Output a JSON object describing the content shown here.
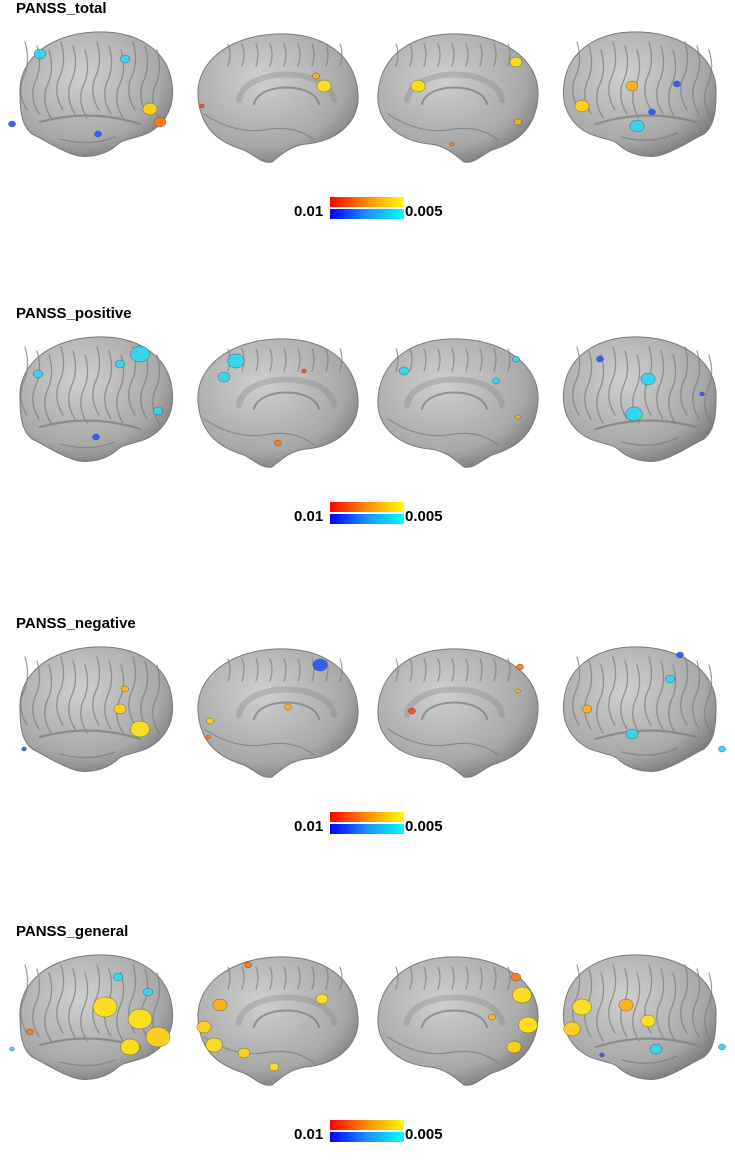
{
  "panels": [
    {
      "title": "PANSS_total"
    },
    {
      "title": "PANSS_positive"
    },
    {
      "title": "PANSS_negative"
    },
    {
      "title": "PANSS_general"
    }
  ],
  "colorbar": {
    "low_label": "0.01",
    "high_label": "0.005",
    "hot_colors": [
      "#ff0000",
      "#ff8c00",
      "#ffff00"
    ],
    "cold_colors": [
      "#0000ff",
      "#1e90ff",
      "#00ffff"
    ]
  },
  "views": [
    "left-lateral",
    "left-medial",
    "right-medial",
    "right-lateral"
  ],
  "colors": {
    "cortex": "#a8a8a8",
    "cortex_shadow": "#6e6e6e",
    "background": "#ffffff"
  }
}
